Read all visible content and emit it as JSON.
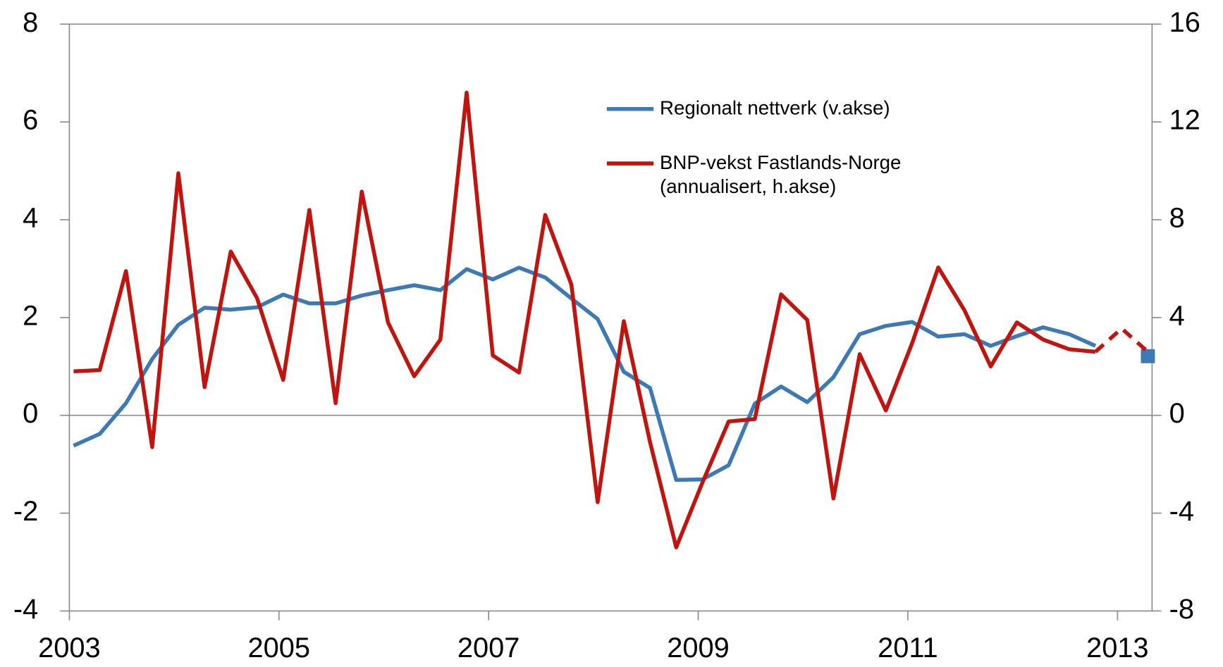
{
  "chart_data": {
    "type": "line",
    "x": [
      2003.04,
      2003.29,
      2003.54,
      2003.79,
      2004.04,
      2004.29,
      2004.54,
      2004.79,
      2005.04,
      2005.29,
      2005.54,
      2005.79,
      2006.04,
      2006.29,
      2006.54,
      2006.79,
      2007.04,
      2007.29,
      2007.54,
      2007.79,
      2008.04,
      2008.29,
      2008.54,
      2008.79,
      2009.04,
      2009.29,
      2009.54,
      2009.79,
      2010.04,
      2010.29,
      2010.54,
      2010.79,
      2011.04,
      2011.29,
      2011.54,
      2011.79,
      2012.04,
      2012.29,
      2012.54,
      2012.79,
      2013.04,
      2013.29
    ],
    "series": [
      {
        "name": "Regionalt nettverk (v.akse)",
        "color": "#3d7ab5",
        "values": [
          -0.62,
          -0.38,
          0.25,
          1.15,
          1.85,
          2.2,
          2.16,
          2.21,
          2.47,
          2.29,
          2.29,
          2.45,
          2.56,
          2.66,
          2.56,
          2.99,
          2.78,
          3.02,
          2.82,
          2.39,
          1.97,
          0.89,
          0.56,
          -1.32,
          -1.31,
          -1.02,
          0.24,
          0.59,
          0.27,
          0.78,
          1.66,
          1.83,
          1.91,
          1.61,
          1.66,
          1.42,
          1.62,
          1.8,
          1.66,
          1.42,
          null,
          1.21
        ]
      },
      {
        "name": "BNP-vekst Fastlands-Norge\n(annualisert, h.akse)",
        "color": "#c0150f",
        "axis": "y2",
        "dashed_from": 39,
        "values": [
          1.8,
          1.85,
          5.9,
          -1.3,
          9.9,
          1.15,
          6.7,
          4.8,
          1.45,
          8.4,
          0.5,
          9.15,
          3.8,
          1.6,
          3.1,
          13.2,
          2.45,
          1.75,
          8.2,
          5.35,
          -3.55,
          3.85,
          -1.1,
          -5.4,
          -2.75,
          -0.25,
          -0.15,
          4.95,
          3.9,
          -3.4,
          2.5,
          0.2,
          2.95,
          6.05,
          4.3,
          2.0,
          3.8,
          3.1,
          2.7,
          2.6,
          3.55,
          2.6
        ]
      }
    ],
    "xlim": [
      2003,
      2013.33
    ],
    "xticks": [
      2003,
      2005,
      2007,
      2009,
      2011,
      2013
    ],
    "ylim": [
      -4,
      8
    ],
    "yticks": [
      -4,
      -2,
      0,
      2,
      4,
      6,
      8
    ],
    "y2lim": [
      -8,
      16
    ],
    "y2ticks": [
      -8,
      -4,
      0,
      4,
      8,
      12,
      16
    ]
  }
}
